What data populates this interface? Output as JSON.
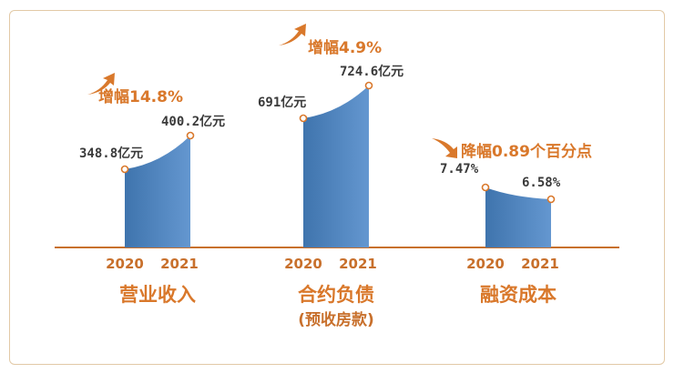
{
  "chart_data": {
    "type": "area",
    "colors": {
      "bar": "#5a8ac6",
      "bar_dark": "#3f6fa8",
      "accent": "#d9782b",
      "axis": "#c8702c"
    },
    "groups": [
      {
        "title": "营业收入",
        "subtitle": "",
        "categories": [
          "2020",
          "2021"
        ],
        "values": [
          348.8,
          400.2
        ],
        "labels": [
          "348.8亿元",
          "400.2亿元"
        ],
        "change": "增幅14.8%",
        "direction": "up"
      },
      {
        "title": "合约负债",
        "subtitle": "(预收房款)",
        "categories": [
          "2020",
          "2021"
        ],
        "values": [
          691,
          724.6
        ],
        "labels": [
          "691亿元",
          "724.6亿元"
        ],
        "change": "增幅4.9%",
        "direction": "up"
      },
      {
        "title": "融资成本",
        "subtitle": "",
        "categories": [
          "2020",
          "2021"
        ],
        "values": [
          7.47,
          6.58
        ],
        "labels": [
          "7.47%",
          "6.58%"
        ],
        "change": "降幅0.89个百分点",
        "direction": "down"
      }
    ]
  }
}
